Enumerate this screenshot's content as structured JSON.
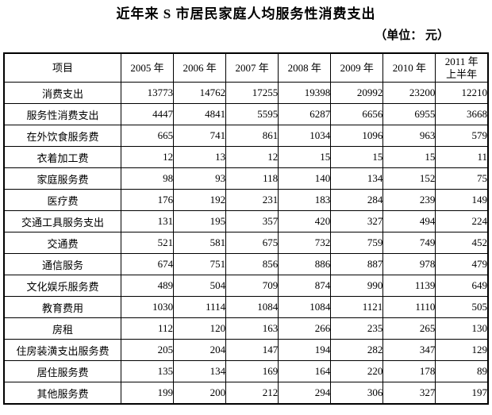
{
  "title": "近年来 S 市居民家庭人均服务性消费支出",
  "unit_label": "（单位： 元）",
  "table": {
    "columns": [
      "项目",
      "2005 年",
      "2006 年",
      "2007 年",
      "2008 年",
      "2009 年",
      "2010 年",
      "2011 年\n上半年"
    ],
    "rows": [
      {
        "label": "消费支出",
        "values": [
          "13773",
          "14762",
          "17255",
          "19398",
          "20992",
          "23200",
          "12210"
        ]
      },
      {
        "label": "服务性消费支出",
        "values": [
          "4447",
          "4841",
          "5595",
          "6287",
          "6656",
          "6955",
          "3668"
        ]
      },
      {
        "label": "在外饮食服务费",
        "values": [
          "665",
          "741",
          "861",
          "1034",
          "1096",
          "963",
          "579"
        ]
      },
      {
        "label": "衣着加工费",
        "values": [
          "12",
          "13",
          "12",
          "15",
          "15",
          "15",
          "11"
        ]
      },
      {
        "label": "家庭服务费",
        "values": [
          "98",
          "93",
          "118",
          "140",
          "134",
          "152",
          "75"
        ]
      },
      {
        "label": "医疗费",
        "values": [
          "176",
          "192",
          "231",
          "183",
          "284",
          "239",
          "149"
        ]
      },
      {
        "label": "交通工具服务支出",
        "values": [
          "131",
          "195",
          "357",
          "420",
          "327",
          "494",
          "224"
        ]
      },
      {
        "label": "交通费",
        "values": [
          "521",
          "581",
          "675",
          "732",
          "759",
          "749",
          "452"
        ]
      },
      {
        "label": "通信服务",
        "values": [
          "674",
          "751",
          "856",
          "886",
          "887",
          "978",
          "479"
        ]
      },
      {
        "label": "文化娱乐服务费",
        "values": [
          "489",
          "504",
          "709",
          "874",
          "990",
          "1139",
          "649"
        ]
      },
      {
        "label": "教育费用",
        "values": [
          "1030",
          "1114",
          "1084",
          "1084",
          "1121",
          "1110",
          "505"
        ]
      },
      {
        "label": "房租",
        "values": [
          "112",
          "120",
          "163",
          "266",
          "235",
          "265",
          "130"
        ]
      },
      {
        "label": "住房装潢支出服务费",
        "values": [
          "205",
          "204",
          "147",
          "194",
          "282",
          "347",
          "129"
        ]
      },
      {
        "label": "居住服务费",
        "values": [
          "135",
          "134",
          "169",
          "164",
          "220",
          "178",
          "89"
        ]
      },
      {
        "label": "其他服务费",
        "values": [
          "199",
          "200",
          "212",
          "294",
          "306",
          "327",
          "197"
        ]
      }
    ],
    "bold_cells": [
      {
        "row": 3,
        "col": 5
      },
      {
        "row": 10,
        "col": 5
      }
    ]
  }
}
